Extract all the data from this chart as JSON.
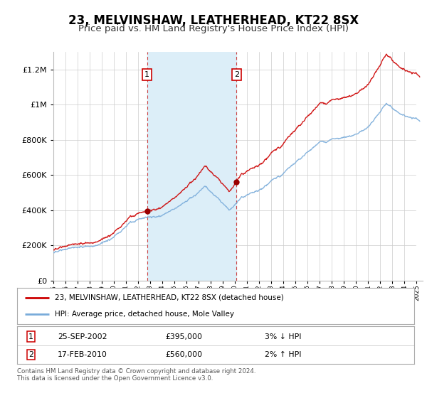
{
  "title": "23, MELVINSHAW, LEATHERHEAD, KT22 8SX",
  "subtitle": "Price paid vs. HM Land Registry's House Price Index (HPI)",
  "title_fontsize": 12,
  "subtitle_fontsize": 9.5,
  "background_color": "#ffffff",
  "plot_bg_color": "#ffffff",
  "grid_color": "#cccccc",
  "ylim": [
    0,
    1300000
  ],
  "yticks": [
    0,
    200000,
    400000,
    600000,
    800000,
    1000000,
    1200000
  ],
  "ytick_labels": [
    "£0",
    "£200K",
    "£400K",
    "£600K",
    "£800K",
    "£1M",
    "£1.2M"
  ],
  "xlim_start": 1995.0,
  "xlim_end": 2025.5,
  "sale1_year": 2002.73,
  "sale1_price": 395000,
  "sale2_year": 2010.12,
  "sale2_price": 560000,
  "sale1_label": "1",
  "sale2_label": "2",
  "shade_color": "#dceef8",
  "red_line_color": "#cc0000",
  "blue_line_color": "#7aacda",
  "legend_line1": "23, MELVINSHAW, LEATHERHEAD, KT22 8SX (detached house)",
  "legend_line2": "HPI: Average price, detached house, Mole Valley",
  "table_row1_num": "1",
  "table_row1_date": "25-SEP-2002",
  "table_row1_price": "£395,000",
  "table_row1_hpi": "3% ↓ HPI",
  "table_row2_num": "2",
  "table_row2_date": "17-FEB-2010",
  "table_row2_price": "£560,000",
  "table_row2_hpi": "2% ↑ HPI",
  "footnote": "Contains HM Land Registry data © Crown copyright and database right 2024.\nThis data is licensed under the Open Government Licence v3.0.",
  "marker_color": "#990000",
  "dashed_line_color": "#cc4444"
}
